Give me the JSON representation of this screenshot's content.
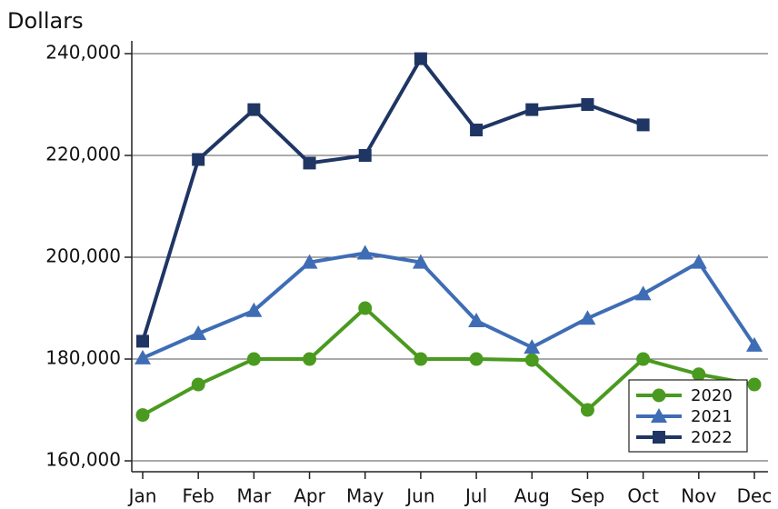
{
  "chart_data": {
    "type": "line",
    "y_label": "Dollars",
    "categories": [
      "Jan",
      "Feb",
      "Mar",
      "Apr",
      "May",
      "Jun",
      "Jul",
      "Aug",
      "Sep",
      "Oct",
      "Nov",
      "Dec"
    ],
    "series": [
      {
        "name": "2020",
        "color": "#4a9a1f",
        "marker": "circle",
        "values": [
          169000,
          175000,
          180000,
          180000,
          190000,
          180000,
          180000,
          179800,
          170000,
          180000,
          177000,
          175000
        ]
      },
      {
        "name": "2021",
        "color": "#3f6db5",
        "marker": "triangle",
        "values": [
          180200,
          185000,
          189500,
          199000,
          200800,
          199000,
          187500,
          182300,
          188000,
          192800,
          199000,
          182700
        ]
      },
      {
        "name": "2022",
        "color": "#1f3564",
        "marker": "square",
        "values": [
          183500,
          219200,
          229000,
          218500,
          220000,
          239000,
          225000,
          229000,
          230000,
          226000,
          null,
          null
        ]
      }
    ],
    "ylim": [
      157860,
      242500
    ],
    "yticks": [
      {
        "value": 160000,
        "label": "160,000"
      },
      {
        "value": 180000,
        "label": "180,000"
      },
      {
        "value": 200000,
        "label": "200,000"
      },
      {
        "value": 220000,
        "label": "220,000"
      },
      {
        "value": 240000,
        "label": "240,000"
      }
    ],
    "grid": true,
    "legend": "lower right"
  }
}
